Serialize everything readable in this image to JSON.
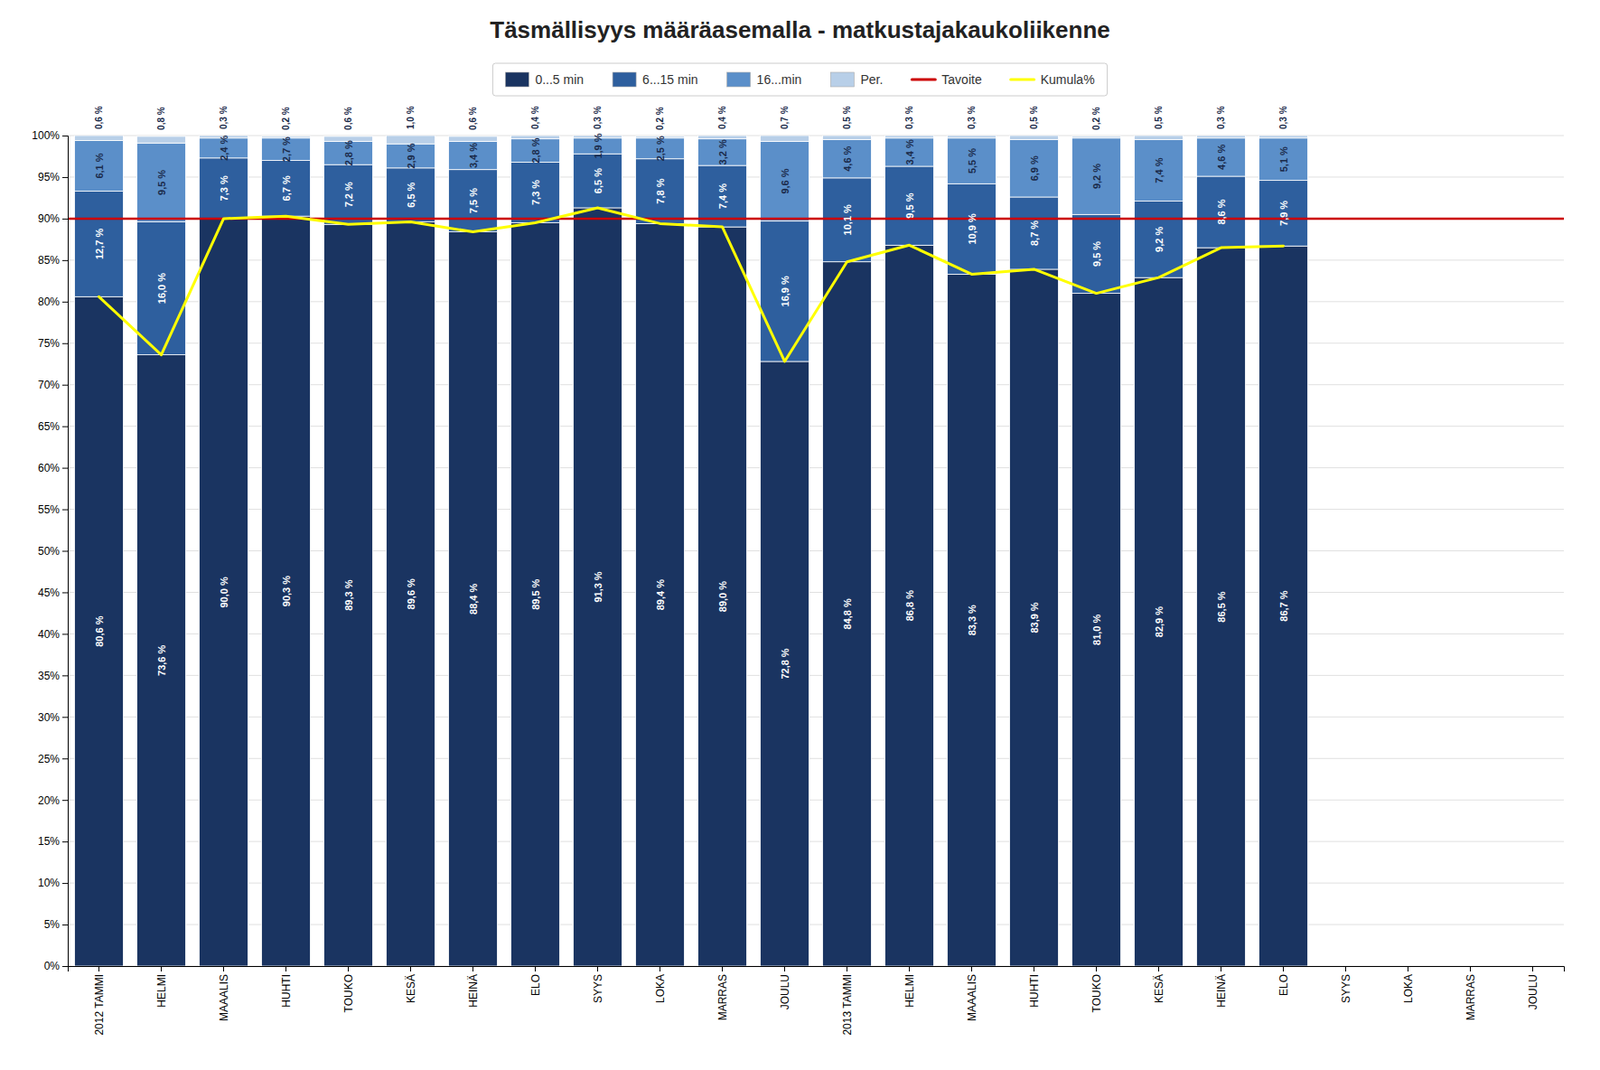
{
  "chart_data": {
    "type": "bar",
    "title": "Täsmällisyys määräasemalla - matkustajakaukoliikenne",
    "categories": [
      "2012 TAMMI",
      "HELMI",
      "MAAALIS",
      "HUHTI",
      "TOUKO",
      "KESÄ",
      "HEINÄ",
      "ELO",
      "SYYS",
      "LOKA",
      "MARRAS",
      "JOULU",
      "2013 TAMMI",
      "HELMI",
      "MAAALIS",
      "HUHTI",
      "TOUKO",
      "KESÄ",
      "HEINÄ",
      "ELO",
      "SYYS",
      "LOKA",
      "MARRAS",
      "JOULU"
    ],
    "stacked": true,
    "data_labels": true,
    "grid": true,
    "legend": "top",
    "ylim": [
      0,
      100
    ],
    "yticks": [
      {
        "value": 0,
        "label": "0%"
      },
      {
        "value": 5,
        "label": "5%"
      },
      {
        "value": 10,
        "label": "10%"
      },
      {
        "value": 15,
        "label": "15%"
      },
      {
        "value": 20,
        "label": "20%"
      },
      {
        "value": 25,
        "label": "25%"
      },
      {
        "value": 30,
        "label": "30%"
      },
      {
        "value": 35,
        "label": "35%"
      },
      {
        "value": 40,
        "label": "40%"
      },
      {
        "value": 45,
        "label": "45%"
      },
      {
        "value": 50,
        "label": "50%"
      },
      {
        "value": 55,
        "label": "55%"
      },
      {
        "value": 60,
        "label": "60%"
      },
      {
        "value": 65,
        "label": "65%"
      },
      {
        "value": 70,
        "label": "70%"
      },
      {
        "value": 75,
        "label": "75%"
      },
      {
        "value": 80,
        "label": "80%"
      },
      {
        "value": 85,
        "label": "85%"
      },
      {
        "value": 90,
        "label": "90%"
      },
      {
        "value": 95,
        "label": "95%"
      },
      {
        "value": 100,
        "label": "100%"
      }
    ],
    "series": [
      {
        "name": "0...5 min",
        "type": "bar",
        "color": "#1a3461",
        "values": [
          80.6,
          73.6,
          90.0,
          90.3,
          89.3,
          89.6,
          88.4,
          89.5,
          91.3,
          89.4,
          89.0,
          72.8,
          84.8,
          86.8,
          83.3,
          83.9,
          81.0,
          82.9,
          86.5,
          86.7,
          0,
          0,
          0,
          0
        ],
        "value_labels": [
          "80,6 %",
          "73,6 %",
          "90,0 %",
          "90,3 %",
          "89,3 %",
          "89,6 %",
          "88,4 %",
          "89,5 %",
          "91,3 %",
          "89,4 %",
          "89,0 %",
          "72,8 %",
          "84,8 %",
          "86,8 %",
          "83,3 %",
          "83,9 %",
          "81,0 %",
          "82,9 %",
          "86,5 %",
          "86,7 %",
          null,
          null,
          null,
          null
        ]
      },
      {
        "name": "6...15 min",
        "type": "bar",
        "color": "#2e5f9e",
        "values": [
          12.7,
          16.0,
          7.3,
          6.7,
          7.2,
          6.5,
          7.5,
          7.3,
          6.5,
          7.8,
          7.4,
          16.9,
          10.1,
          9.5,
          10.9,
          8.7,
          9.5,
          9.2,
          8.6,
          7.9,
          0,
          0,
          0,
          0
        ],
        "value_labels": [
          "12,7 %",
          "16,0 %",
          "7,3 %",
          "6,7 %",
          "7,2 %",
          "6,5 %",
          "7,5 %",
          "7,3 %",
          "6,5 %",
          "7,8 %",
          "7,4 %",
          "16,9 %",
          "10,1 %",
          "9,5 %",
          "10,9 %",
          "8,7 %",
          "9,5 %",
          "9,2 %",
          "8,6 %",
          "7,9 %",
          null,
          null,
          null,
          null
        ]
      },
      {
        "name": "16...min",
        "type": "bar",
        "color": "#5b8fc9",
        "values": [
          6.1,
          9.5,
          2.4,
          2.7,
          2.8,
          2.9,
          3.4,
          2.8,
          1.9,
          2.5,
          3.2,
          9.6,
          4.6,
          3.4,
          5.5,
          6.9,
          9.2,
          7.4,
          4.6,
          5.1,
          0,
          0,
          0,
          0
        ],
        "value_labels": [
          "6,1 %",
          "9,5 %",
          "2,4 %",
          "2,7 %",
          "2,8 %",
          "2,9 %",
          "3,4 %",
          "2,8 %",
          "1,9 %",
          "2,5 %",
          "3,2 %",
          "9,6 %",
          "4,6 %",
          "3,4 %",
          "5,5 %",
          "6,9 %",
          "9,2 %",
          "7,4 %",
          "4,6 %",
          "5,1 %",
          null,
          null,
          null,
          null
        ]
      },
      {
        "name": "Per.",
        "type": "bar",
        "color": "#b8cfe8",
        "values": [
          0.6,
          0.8,
          0.3,
          0.2,
          0.6,
          1.0,
          0.6,
          0.4,
          0.3,
          0.2,
          0.4,
          0.7,
          0.5,
          0.3,
          0.3,
          0.5,
          0.2,
          0.5,
          0.3,
          0.3,
          0,
          0,
          0,
          0
        ],
        "value_labels": [
          "0,6 %",
          "0,8 %",
          "0,3 %",
          "0,2 %",
          "0,6 %",
          "1,0 %",
          "0,6 %",
          "0,4 %",
          "0,3 %",
          "0,2 %",
          "0,4 %",
          "0,7 %",
          "0,5 %",
          "0,3 %",
          "0,3 %",
          "0,5 %",
          "0,2 %",
          "0,5 %",
          "0,3 %",
          "0,3 %",
          null,
          null,
          null,
          null
        ]
      },
      {
        "name": "Tavoite",
        "type": "hline",
        "color": "#cc0000",
        "value": 90.0
      },
      {
        "name": "Kumula%",
        "type": "line",
        "color": "#ffff00",
        "values": [
          80.6,
          73.6,
          90.0,
          90.3,
          89.3,
          89.6,
          88.4,
          89.5,
          91.3,
          89.4,
          89.0,
          72.8,
          84.8,
          86.8,
          83.3,
          83.9,
          81.0,
          82.9,
          86.5,
          86.7,
          null,
          null,
          null,
          null
        ]
      }
    ]
  }
}
